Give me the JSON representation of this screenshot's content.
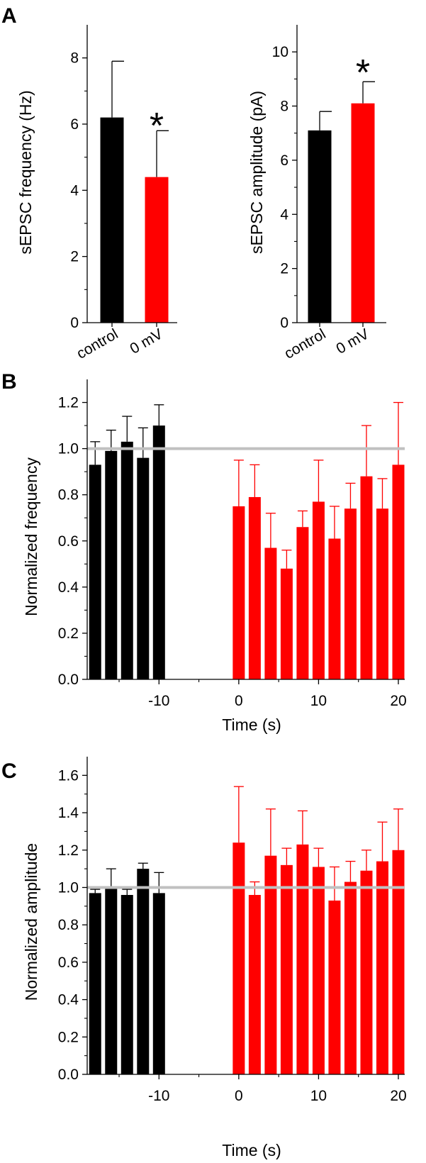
{
  "chart_data": [
    {
      "panel": "A",
      "type": "bar",
      "categories": [
        "control",
        "0 mV"
      ],
      "values": [
        6.2,
        4.4
      ],
      "errors": [
        1.7,
        1.4
      ],
      "colors": [
        "#000000",
        "#ff0000"
      ],
      "ylabel": "sEPSC frequency (Hz)",
      "ylim": [
        0,
        9
      ],
      "yticks": [
        0,
        2,
        4,
        6,
        8
      ],
      "annotation": "*"
    },
    {
      "panel": "",
      "type": "bar",
      "categories": [
        "control",
        "0 mV"
      ],
      "values": [
        7.1,
        8.1
      ],
      "errors": [
        0.7,
        0.8
      ],
      "colors": [
        "#000000",
        "#ff0000"
      ],
      "ylabel": "sEPSC amplitude (pA)",
      "ylim": [
        0,
        11
      ],
      "yticks": [
        0,
        2,
        4,
        6,
        8,
        10
      ],
      "annotation": "*"
    },
    {
      "panel": "B",
      "type": "bar",
      "x": [
        -18,
        -16,
        -14,
        -12,
        -10,
        0,
        2,
        4,
        6,
        8,
        10,
        12,
        14,
        16,
        18,
        20
      ],
      "values": [
        0.93,
        0.99,
        1.03,
        0.96,
        1.1,
        0.75,
        0.79,
        0.57,
        0.48,
        0.66,
        0.77,
        0.61,
        0.74,
        0.88,
        0.74,
        0.93
      ],
      "errors": [
        0.1,
        0.09,
        0.11,
        0.13,
        0.09,
        0.2,
        0.14,
        0.15,
        0.08,
        0.07,
        0.18,
        0.14,
        0.11,
        0.22,
        0.13,
        0.27
      ],
      "colors": [
        "#000000",
        "#000000",
        "#000000",
        "#000000",
        "#000000",
        "#ff0000",
        "#ff0000",
        "#ff0000",
        "#ff0000",
        "#ff0000",
        "#ff0000",
        "#ff0000",
        "#ff0000",
        "#ff0000",
        "#ff0000",
        "#ff0000"
      ],
      "reference_line": 1.0,
      "xlabel": "Time (s)",
      "ylabel": "Normalized frequency",
      "xlim": [
        -19,
        20.8
      ],
      "ylim": [
        0,
        1.3
      ],
      "xticks": [
        -10,
        0,
        10,
        20
      ],
      "yticks": [
        "0.0",
        "0.2",
        "0.4",
        "0.6",
        "0.8",
        "1.0",
        "1.2"
      ]
    },
    {
      "panel": "C",
      "type": "bar",
      "x": [
        -18,
        -16,
        -14,
        -12,
        -10,
        0,
        2,
        4,
        6,
        8,
        10,
        12,
        14,
        16,
        18,
        20
      ],
      "values": [
        0.97,
        1.0,
        0.96,
        1.1,
        0.97,
        1.24,
        0.96,
        1.17,
        1.12,
        1.23,
        1.11,
        0.93,
        1.03,
        1.09,
        1.14,
        1.2
      ],
      "errors": [
        0.02,
        0.1,
        0.03,
        0.03,
        0.11,
        0.3,
        0.07,
        0.25,
        0.09,
        0.18,
        0.1,
        0.18,
        0.11,
        0.11,
        0.21,
        0.22
      ],
      "colors": [
        "#000000",
        "#000000",
        "#000000",
        "#000000",
        "#000000",
        "#ff0000",
        "#ff0000",
        "#ff0000",
        "#ff0000",
        "#ff0000",
        "#ff0000",
        "#ff0000",
        "#ff0000",
        "#ff0000",
        "#ff0000",
        "#ff0000"
      ],
      "reference_line": 1.0,
      "xlabel": "Time (s)",
      "ylabel": "Normalized amplitude",
      "xlim": [
        -19,
        20.8
      ],
      "ylim": [
        0,
        1.7
      ],
      "xticks": [
        -10,
        0,
        10,
        20
      ],
      "yticks": [
        "0.0",
        "0.2",
        "0.4",
        "0.6",
        "0.8",
        "1.0",
        "1.2",
        "1.4",
        "1.6"
      ]
    }
  ]
}
